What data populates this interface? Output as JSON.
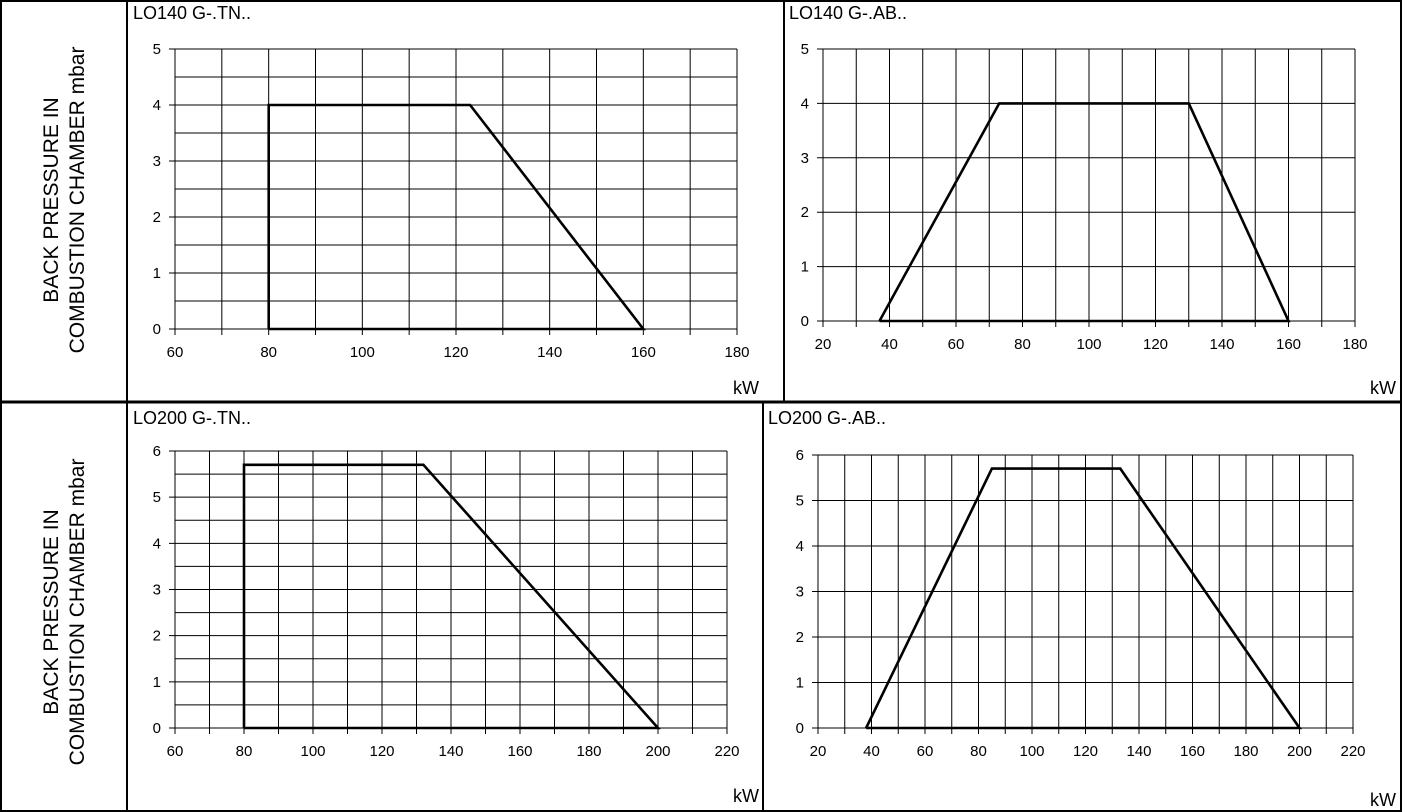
{
  "ylabel_line1": "BACK PRESSURE IN",
  "ylabel_line2": "COMBUSTION CHAMBER mbar",
  "chart_data": [
    {
      "type": "area",
      "title": "LO140 G-.TN..",
      "xlabel": "kW",
      "xlim": [
        60,
        180
      ],
      "ylim": [
        0,
        5
      ],
      "xticks": [
        60,
        80,
        100,
        120,
        140,
        160,
        180
      ],
      "yticks": [
        0,
        1,
        2,
        3,
        4,
        5
      ],
      "x_grid_step": 10,
      "y_grid_step": 0.5,
      "grid": true,
      "series": [
        {
          "x": [
            80,
            80,
            123,
            160,
            80
          ],
          "y": [
            0,
            4,
            4,
            0,
            0
          ]
        }
      ]
    },
    {
      "type": "area",
      "title": "LO140 G-.AB..",
      "xlabel": "kW",
      "xlim": [
        20,
        180
      ],
      "ylim": [
        0,
        5
      ],
      "xticks": [
        20,
        40,
        60,
        80,
        100,
        120,
        140,
        160,
        180
      ],
      "yticks": [
        0,
        1,
        2,
        3,
        4,
        5
      ],
      "x_grid_step": 10,
      "y_grid_step": 1,
      "grid": true,
      "series": [
        {
          "x": [
            37,
            73,
            130,
            160,
            37
          ],
          "y": [
            0,
            4,
            4,
            0,
            0
          ]
        }
      ]
    },
    {
      "type": "area",
      "title": "LO200 G-.TN..",
      "xlabel": "kW",
      "xlim": [
        60,
        220
      ],
      "ylim": [
        0,
        6
      ],
      "xticks": [
        60,
        80,
        100,
        120,
        140,
        160,
        180,
        200,
        220
      ],
      "yticks": [
        0,
        1,
        2,
        3,
        4,
        5,
        6
      ],
      "x_grid_step": 10,
      "y_grid_step": 0.5,
      "grid": true,
      "series": [
        {
          "x": [
            80,
            80,
            132,
            200,
            80
          ],
          "y": [
            0,
            5.7,
            5.7,
            0,
            0
          ]
        }
      ]
    },
    {
      "type": "area",
      "title": "LO200 G-.AB..",
      "xlabel": "kW",
      "xlim": [
        20,
        220
      ],
      "ylim": [
        0,
        6
      ],
      "xticks": [
        20,
        40,
        60,
        80,
        100,
        120,
        140,
        160,
        180,
        200,
        220
      ],
      "yticks": [
        0,
        1,
        2,
        3,
        4,
        5,
        6
      ],
      "x_grid_step": 10,
      "y_grid_step": 1,
      "grid": true,
      "series": [
        {
          "x": [
            38,
            85,
            133,
            200,
            38
          ],
          "y": [
            0,
            5.7,
            5.7,
            0,
            0
          ]
        }
      ]
    }
  ]
}
